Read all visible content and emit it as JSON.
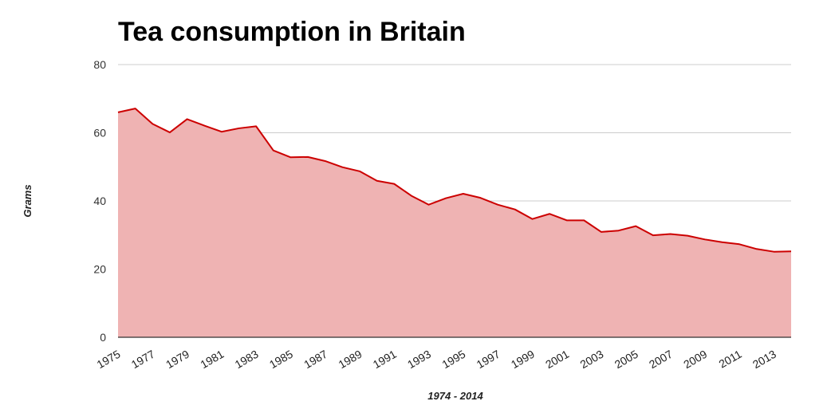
{
  "chart_data": {
    "type": "area",
    "title": "Tea consumption in Britain",
    "xlabel": "1974 - 2014",
    "ylabel": "Grams",
    "ylim": [
      0,
      80
    ],
    "yticks": [
      "0",
      "20",
      "40",
      "60",
      "80"
    ],
    "grid": true,
    "legend": "none",
    "colors": {
      "line": "#cc0000",
      "fill": "#efb3b3",
      "grid": "#cccccc",
      "baseline": "#333333"
    },
    "x": [
      1975,
      1976,
      1977,
      1978,
      1979,
      1980,
      1981,
      1982,
      1983,
      1984,
      1985,
      1986,
      1987,
      1988,
      1989,
      1990,
      1991,
      1992,
      1993,
      1994,
      1995,
      1996,
      1997,
      1998,
      1999,
      2000,
      2001,
      2002,
      2003,
      2004,
      2005,
      2006,
      2007,
      2008,
      2009,
      2010,
      2011,
      2012,
      2013,
      2014
    ],
    "xticks": [
      "1975",
      "1977",
      "1979",
      "1981",
      "1983",
      "1985",
      "1987",
      "1989",
      "1991",
      "1993",
      "1995",
      "1997",
      "1999",
      "2001",
      "2003",
      "2005",
      "2007",
      "2009",
      "2011",
      "2013"
    ],
    "series": [
      {
        "values": [
          66,
          67.1,
          62.6,
          60.1,
          64,
          62.1,
          60.3,
          61.3,
          61.9,
          54.8,
          52.8,
          52.9,
          51.7,
          49.9,
          48.7,
          45.9,
          45,
          41.5,
          38.9,
          40.8,
          42.1,
          40.9,
          38.9,
          37.5,
          34.7,
          36.2,
          34.3,
          34.3,
          30.9,
          31.3,
          32.6,
          29.9,
          30.3,
          29.8,
          28.7,
          27.9,
          27.3,
          25.9,
          25.1,
          25.2
        ]
      }
    ]
  }
}
